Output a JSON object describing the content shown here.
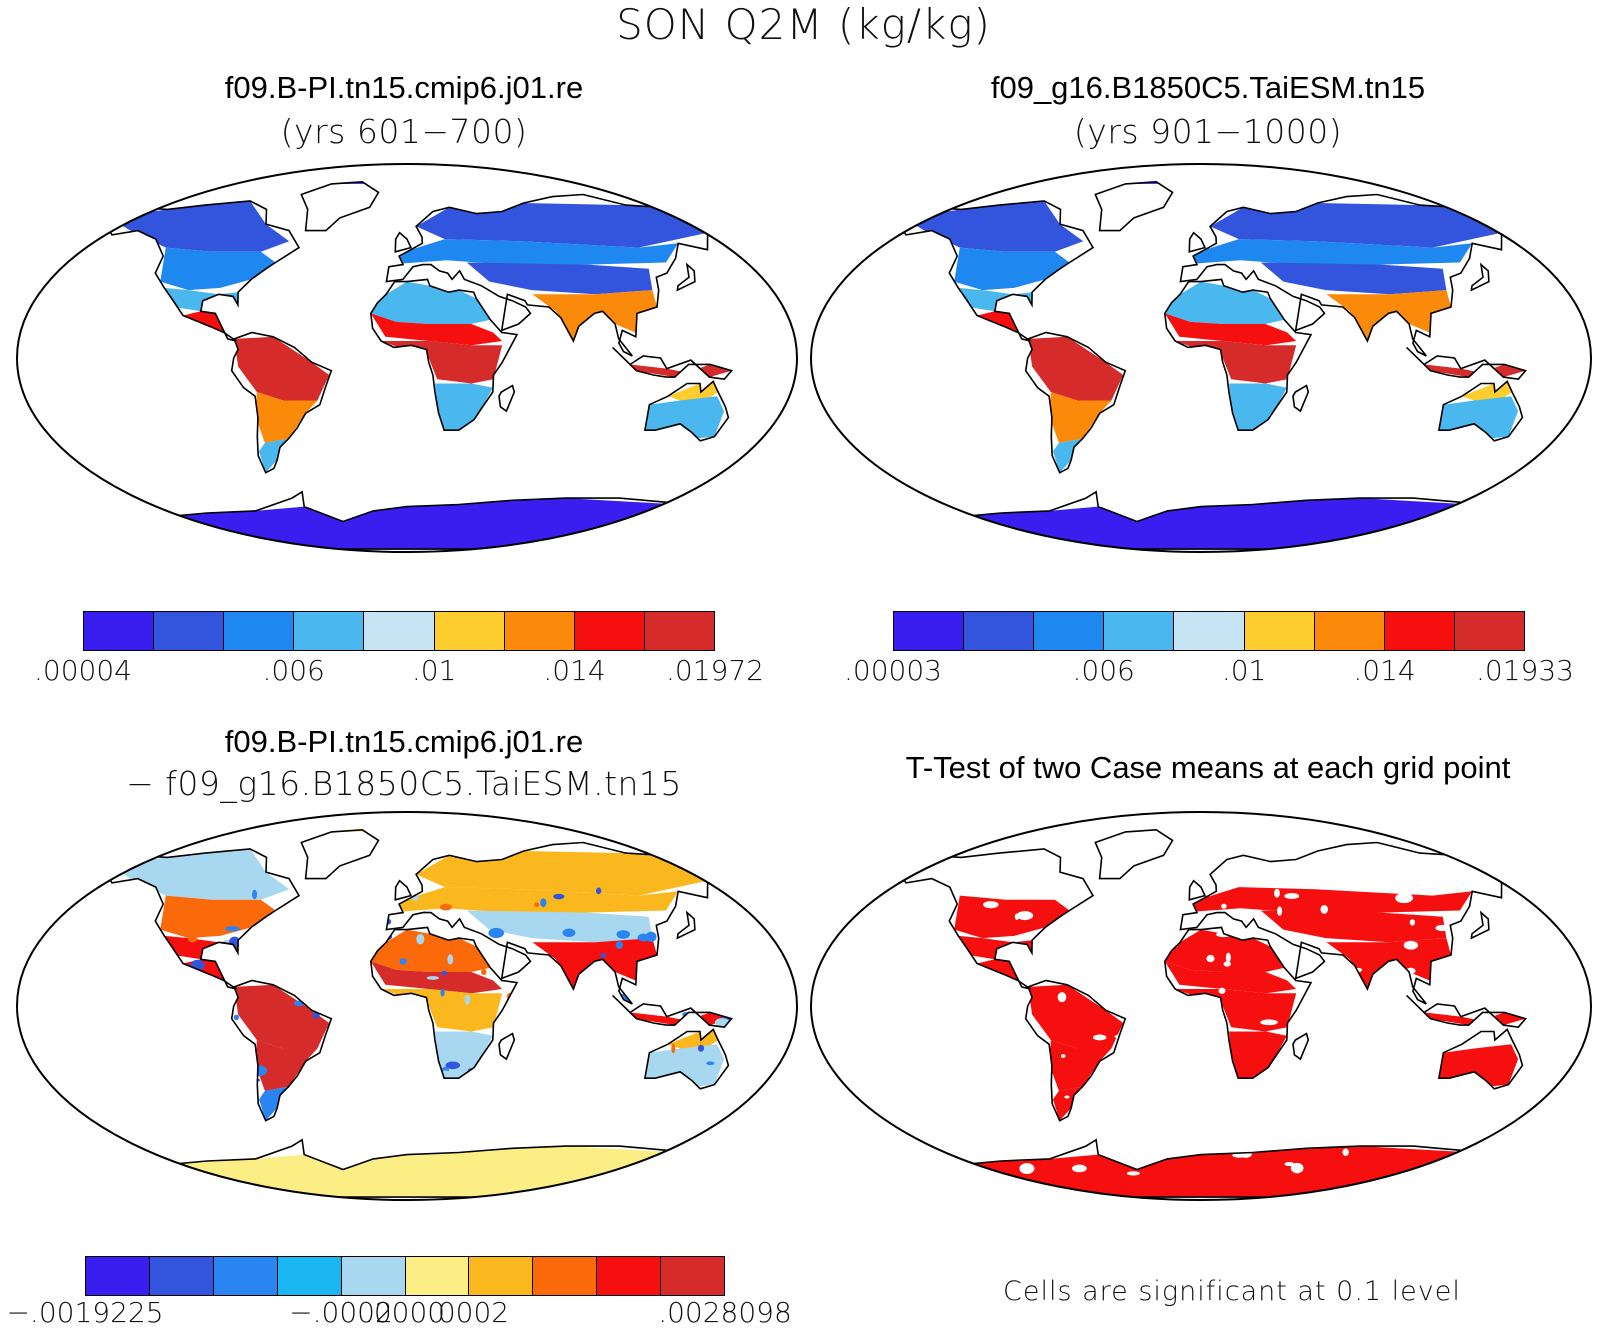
{
  "figure": {
    "title": "SON Q2M (kg/kg)"
  },
  "panels": [
    {
      "id": "case1",
      "title": "f09.B-PI.tn15.cmip6.j01.re",
      "subtitle": "(yrs 601−700)",
      "colorbar": {
        "colors": [
          "#3a1ef0",
          "#3355dd",
          "#1e88f0",
          "#4ab8ee",
          "#c7e4f5",
          "#fccd2c",
          "#fb8a0a",
          "#f50f0f",
          "#d52b2b"
        ],
        "labels": [
          ".00004",
          ".006",
          ".01",
          ".014",
          ".01972"
        ],
        "label_positions": [
          0,
          3,
          5,
          7,
          9
        ]
      },
      "palette": {
        "polar": "#3a1ef0",
        "cold": "#3355dd",
        "cool": "#1e88f0",
        "mild": "#4ab8ee",
        "pale": "#c7e4f5",
        "warm": "#fccd2c",
        "hot": "#fb8a0a",
        "red": "#f50f0f",
        "deep": "#d52b2b"
      }
    },
    {
      "id": "case2",
      "title": "f09_g16.B1850C5.TaiESM.tn15",
      "subtitle": "(yrs 901−1000)",
      "colorbar": {
        "colors": [
          "#3a1ef0",
          "#3355dd",
          "#1e88f0",
          "#4ab8ee",
          "#c7e4f5",
          "#fccd2c",
          "#fb8a0a",
          "#f50f0f",
          "#d52b2b"
        ],
        "labels": [
          ".00003",
          ".006",
          ".01",
          ".014",
          ".01933"
        ],
        "label_positions": [
          0,
          3,
          5,
          7,
          9
        ]
      },
      "palette": {
        "polar": "#3a1ef0",
        "cold": "#3355dd",
        "cool": "#1e88f0",
        "mild": "#4ab8ee",
        "pale": "#c7e4f5",
        "warm": "#fccd2c",
        "hot": "#fb8a0a",
        "red": "#f50f0f",
        "deep": "#d52b2b"
      }
    },
    {
      "id": "diff",
      "title": "f09.B-PI.tn15.cmip6.j01.re",
      "subtitle": "− f09_g16.B1850C5.TaiESM.tn15",
      "colorbar": {
        "colors": [
          "#3a1ef0",
          "#3355dd",
          "#2a85f2",
          "#19b6f2",
          "#a8d7f0",
          "#fbee84",
          "#fbb81e",
          "#fb6a0a",
          "#f50f0f",
          "#d52b2b"
        ],
        "labels": [
          "−.0019225",
          "−.0002",
          ".0000",
          ".0002",
          ".0028098"
        ],
        "label_positions": [
          0,
          4,
          5,
          6,
          10
        ]
      },
      "palette": {
        "neutral": "#fbee84",
        "pos": "#fbb81e",
        "pos2": "#fb6a0a",
        "pos3": "#f50f0f",
        "pos4": "#d52b2b",
        "neg": "#a8d7f0",
        "neg2": "#2a85f2",
        "neg3": "#3355dd"
      }
    },
    {
      "id": "ttest",
      "title": "T-Test of two Case means at each grid point",
      "note": "Cells are significant at 0.1 level",
      "significant_color": "#f50f0f"
    }
  ]
}
